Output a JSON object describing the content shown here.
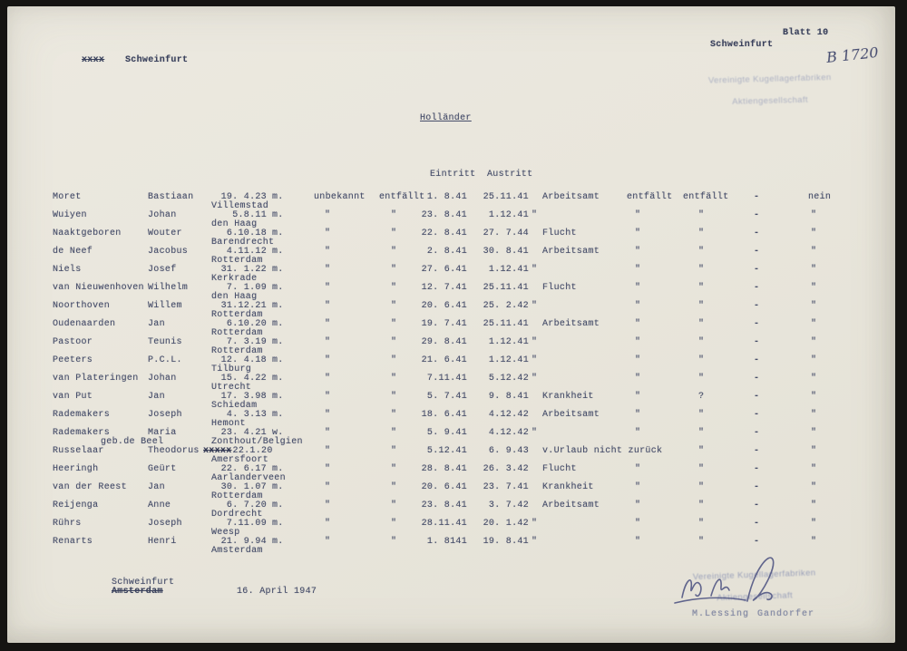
{
  "header": {
    "struck_text": "xxxx",
    "left_city": "Schweinfurt",
    "right_city": "Schweinfurt",
    "sheet_label": "Blatt 10",
    "handwritten_number": "B 1720",
    "stamp_line1": "Vereinigte Kugellagerfabriken",
    "stamp_line2": "Aktiengesellschaft"
  },
  "title": "Holländer",
  "table": {
    "group_headers": {
      "eintritt": "Eintritt",
      "austritt": "Austritt"
    },
    "rows": [
      {
        "surname": "Moret",
        "first": "Bastiaan",
        "birth": "19. 4.23",
        "place": "Villemstad",
        "sex": "m.",
        "unbekannt": "unbekannt",
        "entfallt0": "entfällt",
        "eintritt": "1. 8.41",
        "austritt": "25.11.41",
        "grund": "Arbeitsamt",
        "e1": "entfällt",
        "e2": "entfällt",
        "dash": "-",
        "nein": "nein"
      },
      {
        "surname": "Wuiyen",
        "first": "Johan",
        "birth": "5.8.11",
        "place": "den Haag",
        "sex": "m.",
        "unbekannt": "\"",
        "entfallt0": "\"",
        "eintritt": "23. 8.41",
        "austritt": "1.12.41",
        "grund": "\"",
        "e1": "\"",
        "e2": "\"",
        "dash": "-",
        "nein": "\""
      },
      {
        "surname": "Naaktgeboren",
        "first": "Wouter",
        "birth": "6.10.18",
        "place": "Barendrecht",
        "sex": "m.",
        "unbekannt": "\"",
        "entfallt0": "\"",
        "eintritt": "22. 8.41",
        "austritt": "27. 7.44",
        "grund": "Flucht",
        "e1": "\"",
        "e2": "\"",
        "dash": "-",
        "nein": "\""
      },
      {
        "surname": "de Neef",
        "first": "Jacobus",
        "birth": "4.11.12",
        "place": "Rotterdam",
        "sex": "m.",
        "unbekannt": "\"",
        "entfallt0": "\"",
        "eintritt": "2. 8.41",
        "austritt": "30. 8.41",
        "grund": "Arbeitsamt",
        "e1": "\"",
        "e2": "\"",
        "dash": "-",
        "nein": "\""
      },
      {
        "surname": "Niels",
        "first": "Josef",
        "birth": "31. 1.22",
        "place": "Kerkrade",
        "sex": "m.",
        "unbekannt": "\"",
        "entfallt0": "\"",
        "eintritt": "27. 6.41",
        "austritt": "1.12.41",
        "grund": "\"",
        "e1": "\"",
        "e2": "\"",
        "dash": "-",
        "nein": "\""
      },
      {
        "surname": "van Nieuwenhoven",
        "first": "Wilhelm",
        "birth": "7. 1.09",
        "place": "den Haag",
        "sex": "m.",
        "unbekannt": "\"",
        "entfallt0": "\"",
        "eintritt": "12. 7.41",
        "austritt": "25.11.41",
        "grund": "Flucht",
        "e1": "\"",
        "e2": "\"",
        "dash": "-",
        "nein": "\""
      },
      {
        "surname": "Noorthoven",
        "first": "Willem",
        "birth": "31.12.21",
        "place": "Rotterdam",
        "sex": "m.",
        "unbekannt": "\"",
        "entfallt0": "\"",
        "eintritt": "20. 6.41",
        "austritt": "25. 2.42",
        "grund": "\"",
        "e1": "\"",
        "e2": "\"",
        "dash": "-",
        "nein": "\""
      },
      {
        "surname": "Oudenaarden",
        "first": "Jan",
        "birth": "6.10.20",
        "place": "Rotterdam",
        "sex": "m.",
        "unbekannt": "\"",
        "entfallt0": "\"",
        "eintritt": "19. 7.41",
        "austritt": "25.11.41",
        "grund": "Arbeitsamt",
        "e1": "\"",
        "e2": "\"",
        "dash": "-",
        "nein": "\""
      },
      {
        "surname": "Pastoor",
        "first": "Teunis",
        "birth": "7. 3.19",
        "place": "Rotterdam",
        "sex": "m.",
        "unbekannt": "\"",
        "entfallt0": "\"",
        "eintritt": "29. 8.41",
        "austritt": "1.12.41",
        "grund": "\"",
        "e1": "\"",
        "e2": "\"",
        "dash": "-",
        "nein": "\""
      },
      {
        "surname": "Peeters",
        "first": "P.C.L.",
        "birth": "12. 4.18",
        "place": "Tilburg",
        "sex": "m.",
        "unbekannt": "\"",
        "entfallt0": "\"",
        "eintritt": "21. 6.41",
        "austritt": "1.12.41",
        "grund": "\"",
        "e1": "\"",
        "e2": "\"",
        "dash": "-",
        "nein": "\""
      },
      {
        "surname": "van Plateringen",
        "first": "Johan",
        "birth": "15. 4.22",
        "place": "Utrecht",
        "sex": "m.",
        "unbekannt": "\"",
        "entfallt0": "\"",
        "eintritt": "7.11.41",
        "austritt": "5.12.42",
        "grund": "\"",
        "e1": "\"",
        "e2": "\"",
        "dash": "-",
        "nein": "\""
      },
      {
        "surname": "van Put",
        "first": "Jan",
        "birth": "17. 3.98",
        "place": "Schiedam",
        "sex": "m.",
        "unbekannt": "\"",
        "entfallt0": "\"",
        "eintritt": "5. 7.41",
        "austritt": "9. 8.41",
        "grund": "Krankheit",
        "e1": "\"",
        "e2": "?",
        "dash": "-",
        "nein": "\""
      },
      {
        "surname": "Rademakers",
        "first": "Joseph",
        "birth": "4. 3.13",
        "place": "Hemont",
        "sex": "m.",
        "unbekannt": "\"",
        "entfallt0": "\"",
        "eintritt": "18. 6.41",
        "austritt": "4.12.42",
        "grund": "Arbeitsamt",
        "e1": "\"",
        "e2": "\"",
        "dash": "-",
        "nein": "\""
      },
      {
        "surname": "Rademakers",
        "addition": "geb.de Beel",
        "first": "Maria",
        "birth": "23. 4.21",
        "place": "Zonthout/Belgien",
        "sex": "w.",
        "unbekannt": "\"",
        "entfallt0": "\"",
        "eintritt": "5. 9.41",
        "austritt": "4.12.42",
        "grund": "\"",
        "e1": "\"",
        "e2": "\"",
        "dash": "-",
        "nein": "\""
      },
      {
        "surname": "Russelaar",
        "first": "Theodorus",
        "birth_struck": "xxxxx",
        "birth": "22.1.20",
        "place": "Amersfoort",
        "sex": "",
        "unbekannt": "\"",
        "entfallt0": "\"",
        "eintritt": "5.12.41",
        "austritt": "6. 9.43",
        "grund": "v.Urlaub nicht zurück",
        "e1": "",
        "e2": "\"",
        "dash": "-",
        "nein": "\""
      },
      {
        "surname": "Heeringh",
        "first": "Geürt",
        "birth": "22. 6.17",
        "place": "Aarlanderveen",
        "sex": "m.",
        "unbekannt": "\"",
        "entfallt0": "\"",
        "eintritt": "28. 8.41",
        "austritt": "26. 3.42",
        "grund": "Flucht",
        "e1": "\"",
        "e2": "\"",
        "dash": "-",
        "nein": "\""
      },
      {
        "surname": "van der Reest",
        "first": "Jan",
        "birth": "30. 1.07",
        "place": "Rotterdam",
        "sex": "m.",
        "unbekannt": "\"",
        "entfallt0": "\"",
        "eintritt": "20. 6.41",
        "austritt": "23. 7.41",
        "grund": "Krankheit",
        "e1": "\"",
        "e2": "\"",
        "dash": "-",
        "nein": "\""
      },
      {
        "surname": "Reijenga",
        "first": "Anne",
        "birth": "6. 7.20",
        "place": "Dordrecht",
        "sex": "m.",
        "unbekannt": "\"",
        "entfallt0": "\"",
        "eintritt": "23. 8.41",
        "austritt": "3. 7.42",
        "grund": "Arbeitsamt",
        "e1": "\"",
        "e2": "\"",
        "dash": "-",
        "nein": "\""
      },
      {
        "surname": "Rührs",
        "first": "Joseph",
        "birth": "7.11.09",
        "place": "Weesp",
        "sex": "m.",
        "unbekannt": "\"",
        "entfallt0": "\"",
        "eintritt": "28.11.41",
        "austritt": "20. 1.42",
        "grund": "\"",
        "e1": "\"",
        "e2": "\"",
        "dash": "-",
        "nein": "\""
      },
      {
        "surname": "Renarts",
        "first": "Henri",
        "birth": "21. 9.94",
        "place": "Amsterdam",
        "sex": "m.",
        "unbekannt": "\"",
        "entfallt0": "\"",
        "eintritt": "1. 8141",
        "austritt": "19. 8.41",
        "grund": "\"",
        "e1": "\"",
        "e2": "\"",
        "dash": "-",
        "nein": "\""
      }
    ]
  },
  "footer": {
    "city": "Schweinfurt",
    "struck_city": "Amsterdam",
    "date": "16. April 1947",
    "stamp_line1": "Vereinigte Kugellagerfabriken",
    "stamp_line2": "Aktiengesellschaft",
    "signature1": "M.Lessing",
    "signature2": "Gandorfer"
  },
  "colors": {
    "ink": "#474e6a",
    "paper": "#e9e6dc",
    "stamp": "#7a84ad"
  }
}
